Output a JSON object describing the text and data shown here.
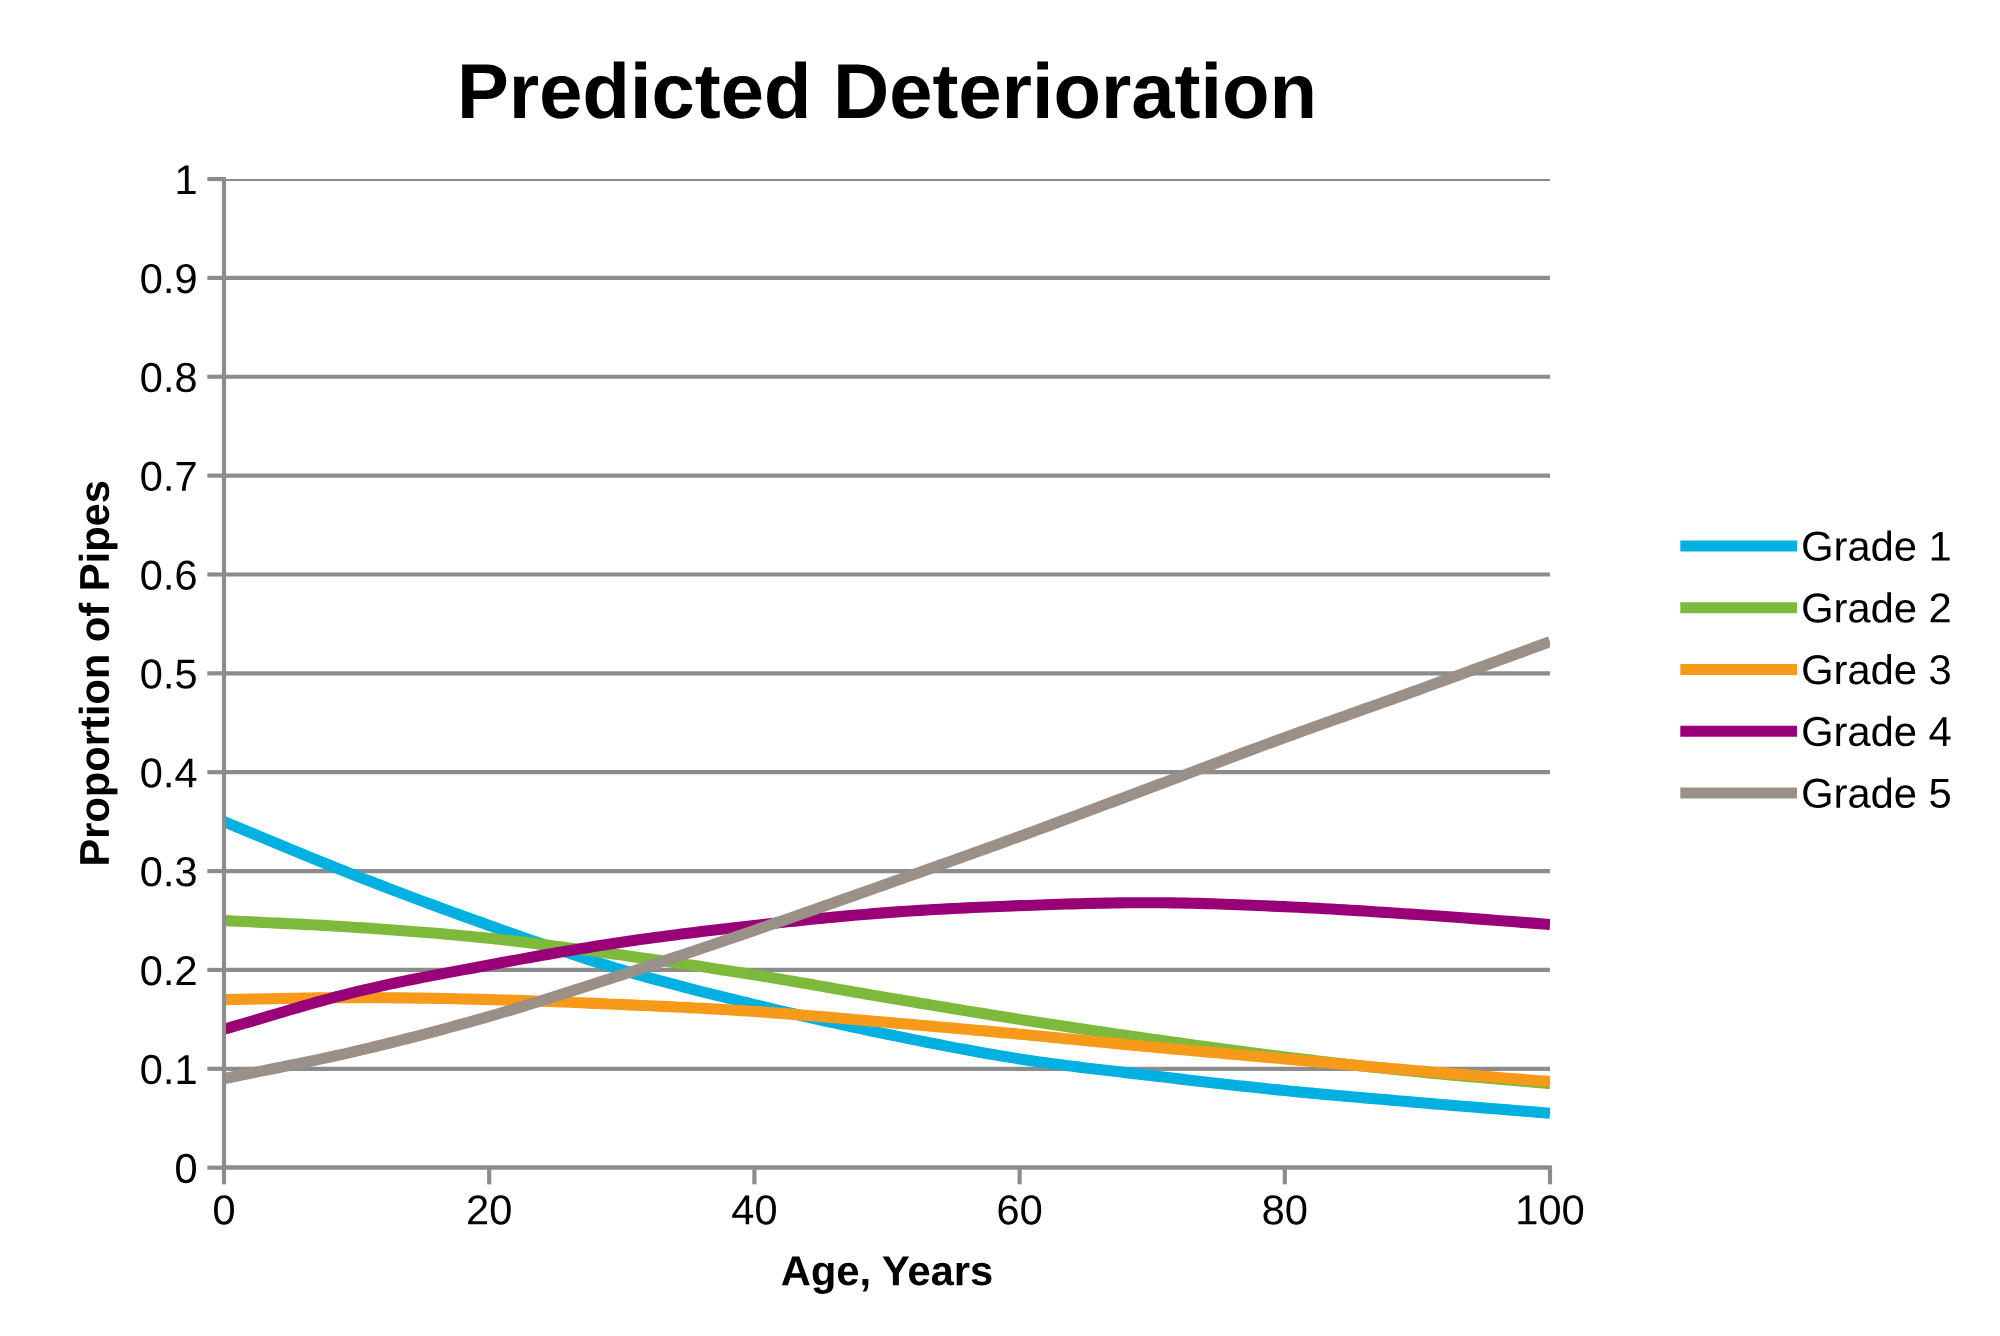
{
  "chart_data": {
    "type": "line",
    "title": "Predicted Deterioration",
    "xlabel": "Age, Years",
    "ylabel": "Proportion of Pipes",
    "x": [
      0,
      10,
      20,
      30,
      40,
      50,
      60,
      70,
      80,
      90,
      100
    ],
    "series": [
      {
        "name": "Grade 1",
        "color": "#00b0e0",
        "values": [
          0.35,
          0.295,
          0.245,
          0.2,
          0.165,
          0.135,
          0.11,
          0.093,
          0.078,
          0.066,
          0.055
        ]
      },
      {
        "name": "Grade 2",
        "color": "#7dba3c",
        "values": [
          0.25,
          0.243,
          0.232,
          0.215,
          0.195,
          0.172,
          0.15,
          0.13,
          0.112,
          0.097,
          0.085
        ]
      },
      {
        "name": "Grade 3",
        "color": "#f79a1a",
        "values": [
          0.17,
          0.172,
          0.17,
          0.165,
          0.158,
          0.147,
          0.135,
          0.122,
          0.11,
          0.098,
          0.087
        ]
      },
      {
        "name": "Grade 4",
        "color": "#990078",
        "values": [
          0.14,
          0.178,
          0.205,
          0.228,
          0.245,
          0.258,
          0.265,
          0.268,
          0.264,
          0.256,
          0.246
        ]
      },
      {
        "name": "Grade 5",
        "color": "#9a9088",
        "values": [
          0.09,
          0.118,
          0.153,
          0.195,
          0.24,
          0.287,
          0.335,
          0.385,
          0.435,
          0.483,
          0.532
        ]
      }
    ],
    "xlim": [
      0,
      100
    ],
    "xticks": [
      0,
      20,
      40,
      60,
      80,
      100
    ],
    "ylim": [
      0,
      1
    ],
    "yticks": [
      0,
      0.1,
      0.2,
      0.3,
      0.4,
      0.5,
      0.6,
      0.7,
      0.8,
      0.9,
      1
    ],
    "grid": "y",
    "legend": "right",
    "marker": "none",
    "line_style": "solid"
  }
}
